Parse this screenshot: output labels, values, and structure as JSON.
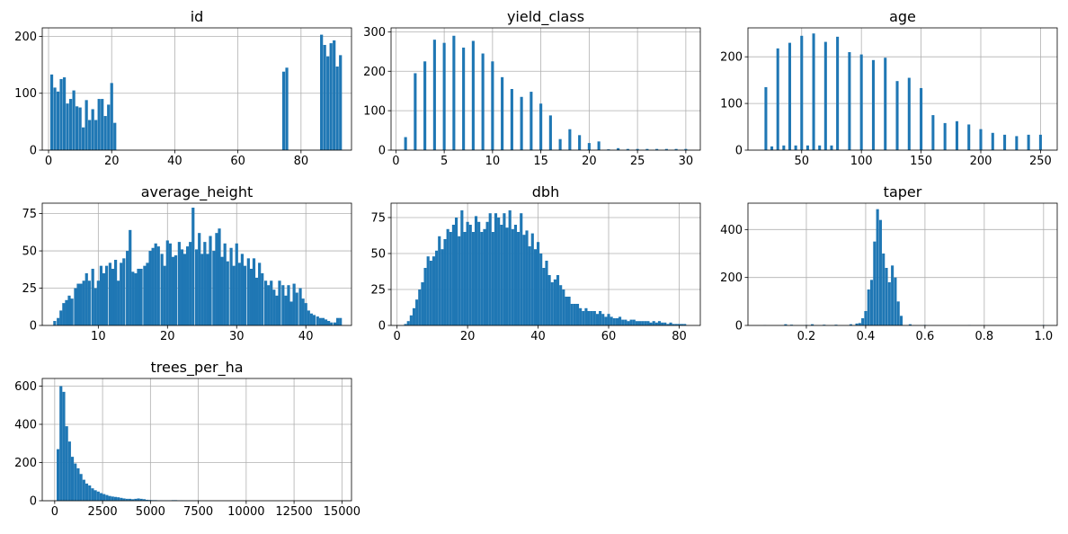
{
  "chart_data": [
    {
      "type": "bar",
      "title": "id",
      "xlim": [
        -2,
        96
      ],
      "ylim": [
        0,
        215
      ],
      "xticks": [
        0,
        20,
        40,
        60,
        80
      ],
      "yticks": [
        0,
        100,
        200
      ],
      "grid": true,
      "color": "#1f77b4",
      "bin_width": 0.92,
      "x": [
        1,
        2,
        3,
        4,
        5,
        6,
        7,
        8,
        9,
        10,
        11,
        12,
        13,
        14,
        15,
        16,
        17,
        18,
        19,
        20,
        21,
        74.5,
        75.5,
        86.5,
        87.5,
        88.5,
        89.5,
        90.5,
        91.5,
        92.5
      ],
      "values": [
        133,
        110,
        103,
        125,
        128,
        82,
        90,
        105,
        77,
        75,
        40,
        88,
        53,
        72,
        53,
        90,
        90,
        60,
        80,
        118,
        48,
        138,
        145,
        203,
        185,
        165,
        188,
        193,
        147,
        167
      ]
    },
    {
      "type": "bar",
      "title": "yield_class",
      "xlim": [
        -0.5,
        31.5
      ],
      "ylim": [
        0,
        310
      ],
      "xticks": [
        0,
        5,
        10,
        15,
        20,
        25,
        30
      ],
      "yticks": [
        0,
        100,
        200,
        300
      ],
      "grid": true,
      "color": "#1f77b4",
      "bin_width": 0.29,
      "x": [
        1,
        2,
        3,
        4,
        5,
        6,
        7,
        8,
        9,
        10,
        11,
        12,
        13,
        14,
        15,
        16,
        17,
        18,
        19,
        20,
        21,
        22,
        23,
        24,
        25,
        26,
        27,
        28,
        29,
        30
      ],
      "values": [
        33,
        195,
        225,
        280,
        272,
        290,
        260,
        277,
        245,
        225,
        185,
        155,
        135,
        148,
        118,
        88,
        28,
        53,
        38,
        18,
        22,
        2,
        5,
        3,
        3,
        3,
        3,
        3,
        3,
        3
      ]
    },
    {
      "type": "bar",
      "title": "age",
      "xlim": [
        5,
        264
      ],
      "ylim": [
        0,
        262
      ],
      "xticks": [
        50,
        100,
        150,
        200,
        250
      ],
      "yticks": [
        0,
        100,
        200
      ],
      "grid": true,
      "color": "#1f77b4",
      "bin_width": 2.3,
      "x": [
        20,
        25,
        30,
        35,
        40,
        45,
        50,
        55,
        60,
        65,
        70,
        75,
        80,
        90,
        100,
        110,
        120,
        130,
        140,
        150,
        160,
        170,
        180,
        190,
        200,
        210,
        220,
        230,
        240,
        250
      ],
      "values": [
        135,
        8,
        218,
        10,
        230,
        10,
        245,
        10,
        250,
        10,
        232,
        10,
        243,
        210,
        205,
        193,
        198,
        148,
        155,
        133,
        75,
        58,
        62,
        55,
        45,
        37,
        33,
        30,
        33,
        33
      ]
    },
    {
      "type": "bar",
      "title": "average_height",
      "xlim": [
        1.9,
        46.6
      ],
      "ylim": [
        0,
        82
      ],
      "xticks": [
        10,
        20,
        30,
        40
      ],
      "yticks": [
        0,
        25,
        50,
        75
      ],
      "grid": true,
      "color": "#1f77b4",
      "bin_width": 0.416,
      "x": [
        3.7,
        4.2,
        4.6,
        5.0,
        5.4,
        5.8,
        6.2,
        6.7,
        7.1,
        7.5,
        7.9,
        8.3,
        8.7,
        9.2,
        9.6,
        10.0,
        10.4,
        10.8,
        11.2,
        11.7,
        12.1,
        12.5,
        12.9,
        13.3,
        13.7,
        14.2,
        14.6,
        15.0,
        15.4,
        15.8,
        16.2,
        16.7,
        17.1,
        17.5,
        17.9,
        18.3,
        18.7,
        19.2,
        19.6,
        20.0,
        20.4,
        20.8,
        21.2,
        21.7,
        22.1,
        22.5,
        22.9,
        23.3,
        23.7,
        24.2,
        24.6,
        25.0,
        25.4,
        25.8,
        26.2,
        26.7,
        27.1,
        27.5,
        27.9,
        28.3,
        28.7,
        29.2,
        29.6,
        30.0,
        30.4,
        30.8,
        31.2,
        31.7,
        32.1,
        32.5,
        32.9,
        33.3,
        33.7,
        34.2,
        34.6,
        35.0,
        35.4,
        35.8,
        36.2,
        36.7,
        37.1,
        37.5,
        37.9,
        38.3,
        38.7,
        39.2,
        39.6,
        40.0,
        40.4,
        40.8,
        41.2,
        41.7,
        42.1,
        42.5,
        42.9,
        43.3,
        43.7,
        44.2,
        44.6,
        45.0
      ],
      "values": [
        3,
        5,
        10,
        15,
        17,
        20,
        18,
        25,
        28,
        28,
        30,
        35,
        30,
        38,
        25,
        30,
        40,
        35,
        40,
        42,
        38,
        44,
        30,
        42,
        45,
        50,
        64,
        36,
        35,
        38,
        38,
        40,
        42,
        50,
        52,
        55,
        53,
        48,
        40,
        57,
        55,
        46,
        47,
        56,
        51,
        48,
        53,
        56,
        79,
        51,
        62,
        48,
        56,
        48,
        60,
        50,
        62,
        65,
        46,
        55,
        43,
        52,
        40,
        55,
        42,
        48,
        40,
        45,
        38,
        45,
        32,
        42,
        35,
        30,
        27,
        30,
        24,
        20,
        30,
        27,
        20,
        27,
        16,
        28,
        22,
        25,
        18,
        15,
        10,
        8,
        7,
        6,
        5,
        5,
        4,
        3,
        2,
        2,
        5,
        5
      ]
    },
    {
      "type": "bar",
      "title": "dbh",
      "xlim": [
        -1.7,
        86
      ],
      "ylim": [
        0,
        85
      ],
      "xticks": [
        0,
        20,
        40,
        60,
        80
      ],
      "yticks": [
        0,
        25,
        50,
        75
      ],
      "grid": true,
      "color": "#1f77b4",
      "bin_width": 0.8,
      "x": [
        2.4,
        3.2,
        4.0,
        4.8,
        5.6,
        6.4,
        7.2,
        8.0,
        8.8,
        9.6,
        10.4,
        11.2,
        12.0,
        12.8,
        13.6,
        14.4,
        15.2,
        16.0,
        16.8,
        17.6,
        18.4,
        19.2,
        20.0,
        20.8,
        21.6,
        22.4,
        23.2,
        24.0,
        24.8,
        25.6,
        26.4,
        27.2,
        28.0,
        28.8,
        29.6,
        30.4,
        31.2,
        32.0,
        32.8,
        33.6,
        34.4,
        35.2,
        36.0,
        36.8,
        37.6,
        38.4,
        39.2,
        40.0,
        40.8,
        41.6,
        42.4,
        43.2,
        44.0,
        44.8,
        45.6,
        46.4,
        47.2,
        48.0,
        48.8,
        49.6,
        50.4,
        51.2,
        52.0,
        52.8,
        53.6,
        54.4,
        55.2,
        56.0,
        56.8,
        57.6,
        58.4,
        59.2,
        60.0,
        60.8,
        61.6,
        62.4,
        63.2,
        64.0,
        64.8,
        65.6,
        66.4,
        67.2,
        68.0,
        68.8,
        69.6,
        70.4,
        71.2,
        72.0,
        72.8,
        73.6,
        74.4,
        75.2,
        76.0,
        76.8,
        77.6,
        78.4,
        79.2,
        80.0,
        80.8,
        81.6
      ],
      "values": [
        1,
        3,
        7,
        12,
        18,
        25,
        30,
        40,
        48,
        45,
        48,
        52,
        62,
        53,
        60,
        67,
        65,
        70,
        75,
        62,
        80,
        65,
        72,
        70,
        65,
        76,
        72,
        65,
        67,
        72,
        78,
        65,
        78,
        75,
        70,
        78,
        68,
        80,
        67,
        70,
        65,
        78,
        63,
        66,
        55,
        64,
        53,
        58,
        50,
        40,
        45,
        35,
        30,
        32,
        35,
        28,
        25,
        20,
        20,
        15,
        15,
        15,
        12,
        10,
        12,
        10,
        10,
        10,
        8,
        10,
        8,
        6,
        8,
        6,
        5,
        5,
        6,
        4,
        4,
        3,
        4,
        4,
        3,
        3,
        3,
        3,
        3,
        2,
        3,
        2,
        3,
        2,
        2,
        1,
        2,
        1,
        1,
        1,
        1,
        1
      ]
    },
    {
      "type": "bar",
      "title": "taper",
      "xlim": [
        0.003,
        1.046
      ],
      "ylim": [
        0,
        510
      ],
      "xticks": [
        0.2,
        0.4,
        0.6,
        0.8,
        1.0
      ],
      "xtick_labels": [
        "0.2",
        "0.4",
        "0.6",
        "0.8",
        "1.0"
      ],
      "yticks": [
        0,
        200,
        400
      ],
      "grid": true,
      "color": "#1f77b4",
      "bin_width": 0.0094,
      "x": [
        0.06,
        0.13,
        0.15,
        0.2,
        0.22,
        0.26,
        0.3,
        0.35,
        0.37,
        0.38,
        0.39,
        0.4,
        0.41,
        0.42,
        0.43,
        0.44,
        0.45,
        0.46,
        0.47,
        0.48,
        0.49,
        0.5,
        0.51,
        0.52,
        0.55,
        0.6,
        0.75,
        1.0
      ],
      "values": [
        1,
        5,
        3,
        2,
        5,
        3,
        3,
        5,
        8,
        10,
        30,
        60,
        150,
        190,
        350,
        485,
        440,
        300,
        240,
        180,
        250,
        200,
        100,
        40,
        5,
        2,
        1,
        2
      ]
    },
    {
      "type": "bar",
      "title": "trees_per_ha",
      "xlim": [
        -650,
        15500
      ],
      "ylim": [
        0,
        640
      ],
      "xticks": [
        0,
        2500,
        5000,
        7500,
        10000,
        12500,
        15000
      ],
      "yticks": [
        0,
        200,
        400,
        600
      ],
      "grid": true,
      "color": "#1f77b4",
      "bin_width": 148,
      "x": [
        175,
        325,
        475,
        625,
        775,
        925,
        1075,
        1225,
        1375,
        1525,
        1675,
        1825,
        1975,
        2125,
        2275,
        2425,
        2575,
        2725,
        2875,
        3025,
        3175,
        3325,
        3475,
        3625,
        3775,
        3925,
        4075,
        4225,
        4375,
        4525,
        4675,
        4825,
        4975,
        5125,
        5275,
        5425,
        5575,
        5725,
        5875,
        6025,
        6175,
        6325,
        6475,
        6625,
        6775,
        6925,
        7075,
        7225,
        7375,
        7525
      ],
      "values": [
        270,
        600,
        570,
        390,
        310,
        230,
        195,
        170,
        140,
        110,
        90,
        80,
        65,
        55,
        48,
        40,
        35,
        30,
        25,
        22,
        20,
        18,
        15,
        12,
        10,
        10,
        8,
        10,
        12,
        10,
        8,
        5,
        4,
        3,
        3,
        2,
        2,
        2,
        2,
        2,
        3,
        3,
        2,
        2,
        1,
        1,
        1,
        1,
        1,
        1
      ]
    }
  ]
}
